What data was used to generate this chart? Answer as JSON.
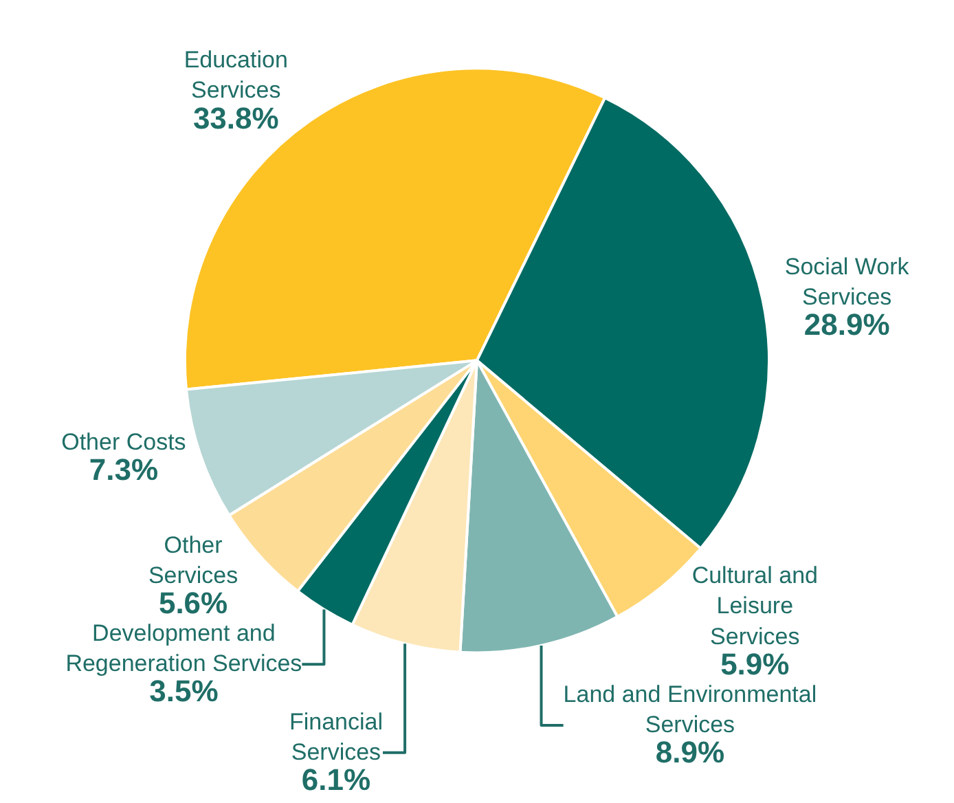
{
  "chart_data": {
    "type": "pie",
    "categories": [
      "Education Services",
      "Social Work Services",
      "Cultural and Leisure Services",
      "Land and Environmental Services",
      "Financial Services",
      "Development and Regeneration Services",
      "Other Services",
      "Other Costs"
    ],
    "values": [
      33.8,
      28.9,
      5.9,
      8.9,
      6.1,
      3.5,
      5.6,
      7.3
    ],
    "value_labels": [
      "33.8%",
      "28.9%",
      "5.9%",
      "8.9%",
      "6.1%",
      "3.5%",
      "5.6%",
      "7.3%"
    ],
    "colors": [
      "#fdc325",
      "#006b63",
      "#fed572",
      "#7fb5b1",
      "#fde7b8",
      "#006b63",
      "#fddc95",
      "#b5d6d4"
    ],
    "legend": false
  }
}
